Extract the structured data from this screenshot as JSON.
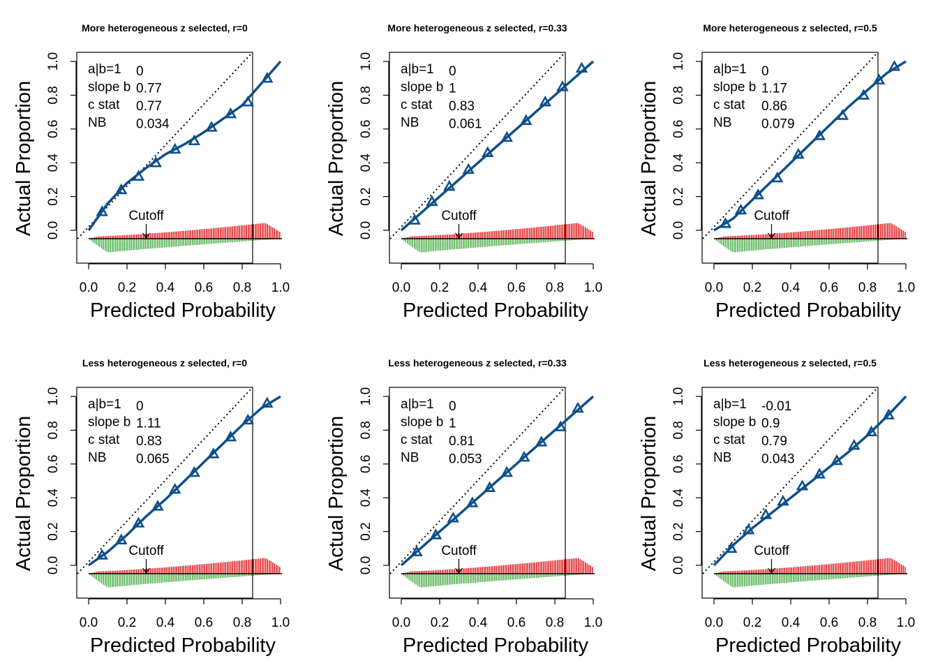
{
  "figure": {
    "colors": {
      "curve": "#0d4f8b",
      "positive_bars": "#e31a1c",
      "negative_bars": "#4daf4a",
      "reference": "#000000"
    },
    "stat_labels": [
      "a|b=1",
      "slope b",
      "c stat",
      "NB"
    ],
    "cutoff_label": "Cutoff",
    "cutoff_value": 0.3,
    "marker": "open-triangle"
  },
  "chart_data": [
    {
      "type": "line",
      "title": "More heterogeneous z selected, r=0",
      "xlabel": "Predicted Probability",
      "ylabel": "Actual Proportion",
      "xlim": [
        0,
        1
      ],
      "ylim": [
        0,
        1
      ],
      "xticks": [
        "0.0",
        "0.2",
        "0.4",
        "0.6",
        "0.8",
        "1.0"
      ],
      "yticks": [
        "0.0",
        "0.2",
        "0.4",
        "0.6",
        "0.8",
        "1.0"
      ],
      "grid": false,
      "stats": [
        "0",
        "0.77",
        "0.77",
        "0.034"
      ],
      "x": [
        0.07,
        0.17,
        0.26,
        0.35,
        0.45,
        0.55,
        0.64,
        0.74,
        0.83,
        0.93
      ],
      "y": [
        0.11,
        0.24,
        0.32,
        0.4,
        0.48,
        0.53,
        0.61,
        0.69,
        0.76,
        0.9
      ],
      "curve": [
        [
          0,
          0
        ],
        [
          0.1,
          0.16
        ],
        [
          0.2,
          0.28
        ],
        [
          0.3,
          0.37
        ],
        [
          0.4,
          0.45
        ],
        [
          0.5,
          0.51
        ],
        [
          0.6,
          0.58
        ],
        [
          0.7,
          0.66
        ],
        [
          0.8,
          0.74
        ],
        [
          0.9,
          0.87
        ],
        [
          1.0,
          1.0
        ]
      ]
    },
    {
      "type": "line",
      "title": "More heterogeneous z selected, r=0.33",
      "xlabel": "Predicted Probability",
      "ylabel": "Actual Proportion",
      "xlim": [
        0,
        1
      ],
      "ylim": [
        0,
        1
      ],
      "xticks": [
        "0.0",
        "0.2",
        "0.4",
        "0.6",
        "0.8",
        "1.0"
      ],
      "yticks": [
        "0.0",
        "0.2",
        "0.4",
        "0.6",
        "0.8",
        "1.0"
      ],
      "grid": false,
      "stats": [
        "0",
        "1",
        "0.83",
        "0.061"
      ],
      "x": [
        0.07,
        0.16,
        0.25,
        0.35,
        0.45,
        0.55,
        0.65,
        0.75,
        0.84,
        0.94
      ],
      "y": [
        0.06,
        0.17,
        0.26,
        0.36,
        0.46,
        0.55,
        0.65,
        0.76,
        0.85,
        0.96
      ],
      "curve": [
        [
          0,
          0
        ],
        [
          0.1,
          0.1
        ],
        [
          0.2,
          0.2
        ],
        [
          0.3,
          0.3
        ],
        [
          0.4,
          0.4
        ],
        [
          0.5,
          0.5
        ],
        [
          0.6,
          0.6
        ],
        [
          0.7,
          0.7
        ],
        [
          0.8,
          0.8
        ],
        [
          0.9,
          0.9
        ],
        [
          1.0,
          1.0
        ]
      ]
    },
    {
      "type": "line",
      "title": "More heterogeneous z selected, r=0.5",
      "xlabel": "Predicted Probability",
      "ylabel": "Actual Proportion",
      "xlim": [
        0,
        1
      ],
      "ylim": [
        0,
        1
      ],
      "xticks": [
        "0.0",
        "0.2",
        "0.4",
        "0.6",
        "0.8",
        "1.0"
      ],
      "yticks": [
        "0.0",
        "0.2",
        "0.4",
        "0.6",
        "0.8",
        "1.0"
      ],
      "grid": false,
      "stats": [
        "0",
        "1.17",
        "0.86",
        "0.079"
      ],
      "x": [
        0.06,
        0.14,
        0.23,
        0.33,
        0.44,
        0.55,
        0.67,
        0.78,
        0.86,
        0.94
      ],
      "y": [
        0.04,
        0.12,
        0.21,
        0.31,
        0.45,
        0.56,
        0.68,
        0.8,
        0.89,
        0.97
      ],
      "curve": [
        [
          0,
          0
        ],
        [
          0.1,
          0.07
        ],
        [
          0.2,
          0.18
        ],
        [
          0.3,
          0.29
        ],
        [
          0.4,
          0.4
        ],
        [
          0.5,
          0.51
        ],
        [
          0.6,
          0.62
        ],
        [
          0.7,
          0.73
        ],
        [
          0.8,
          0.83
        ],
        [
          0.9,
          0.93
        ],
        [
          1.0,
          1.0
        ]
      ]
    },
    {
      "type": "line",
      "title": "Less heterogeneous z selected, r=0",
      "xlabel": "Predicted Probability",
      "ylabel": "Actual Proportion",
      "xlim": [
        0,
        1
      ],
      "ylim": [
        0,
        1
      ],
      "xticks": [
        "0.0",
        "0.2",
        "0.4",
        "0.6",
        "0.8",
        "1.0"
      ],
      "yticks": [
        "0.0",
        "0.2",
        "0.4",
        "0.6",
        "0.8",
        "1.0"
      ],
      "grid": false,
      "stats": [
        "0",
        "1.11",
        "0.83",
        "0.065"
      ],
      "x": [
        0.07,
        0.17,
        0.26,
        0.36,
        0.45,
        0.55,
        0.65,
        0.74,
        0.83,
        0.93
      ],
      "y": [
        0.06,
        0.15,
        0.25,
        0.35,
        0.45,
        0.55,
        0.66,
        0.76,
        0.86,
        0.96
      ],
      "curve": [
        [
          0,
          0
        ],
        [
          0.1,
          0.08
        ],
        [
          0.2,
          0.18
        ],
        [
          0.3,
          0.29
        ],
        [
          0.4,
          0.39
        ],
        [
          0.5,
          0.5
        ],
        [
          0.6,
          0.61
        ],
        [
          0.7,
          0.72
        ],
        [
          0.8,
          0.83
        ],
        [
          0.9,
          0.93
        ],
        [
          1.0,
          1.0
        ]
      ]
    },
    {
      "type": "line",
      "title": "Less heterogeneous z selected, r=0.33",
      "xlabel": "Predicted Probability",
      "ylabel": "Actual Proportion",
      "xlim": [
        0,
        1
      ],
      "ylim": [
        0,
        1
      ],
      "xticks": [
        "0.0",
        "0.2",
        "0.4",
        "0.6",
        "0.8",
        "1.0"
      ],
      "yticks": [
        "0.0",
        "0.2",
        "0.4",
        "0.6",
        "0.8",
        "1.0"
      ],
      "grid": false,
      "stats": [
        "0",
        "1",
        "0.81",
        "0.053"
      ],
      "x": [
        0.08,
        0.18,
        0.27,
        0.37,
        0.46,
        0.55,
        0.64,
        0.73,
        0.83,
        0.92
      ],
      "y": [
        0.08,
        0.18,
        0.28,
        0.37,
        0.46,
        0.55,
        0.64,
        0.73,
        0.82,
        0.93
      ],
      "curve": [
        [
          0,
          0
        ],
        [
          0.1,
          0.1
        ],
        [
          0.2,
          0.2
        ],
        [
          0.3,
          0.3
        ],
        [
          0.4,
          0.4
        ],
        [
          0.5,
          0.5
        ],
        [
          0.6,
          0.6
        ],
        [
          0.7,
          0.7
        ],
        [
          0.8,
          0.8
        ],
        [
          0.9,
          0.9
        ],
        [
          1.0,
          1.0
        ]
      ]
    },
    {
      "type": "line",
      "title": "Less heterogeneous z selected, r=0.5",
      "xlabel": "Predicted Probability",
      "ylabel": "Actual Proportion",
      "xlim": [
        0,
        1
      ],
      "ylim": [
        0,
        1
      ],
      "xticks": [
        "0.0",
        "0.2",
        "0.4",
        "0.6",
        "0.8",
        "1.0"
      ],
      "yticks": [
        "0.0",
        "0.2",
        "0.4",
        "0.6",
        "0.8",
        "1.0"
      ],
      "grid": false,
      "stats": [
        "-0.01",
        "0.9",
        "0.79",
        "0.043"
      ],
      "x": [
        0.09,
        0.18,
        0.27,
        0.36,
        0.46,
        0.55,
        0.64,
        0.73,
        0.82,
        0.91
      ],
      "y": [
        0.1,
        0.21,
        0.3,
        0.38,
        0.47,
        0.54,
        0.62,
        0.71,
        0.79,
        0.89
      ],
      "curve": [
        [
          0,
          0
        ],
        [
          0.1,
          0.12
        ],
        [
          0.2,
          0.22
        ],
        [
          0.3,
          0.31
        ],
        [
          0.4,
          0.4
        ],
        [
          0.5,
          0.49
        ],
        [
          0.6,
          0.58
        ],
        [
          0.7,
          0.67
        ],
        [
          0.8,
          0.77
        ],
        [
          0.9,
          0.88
        ],
        [
          1.0,
          1.0
        ]
      ]
    }
  ]
}
